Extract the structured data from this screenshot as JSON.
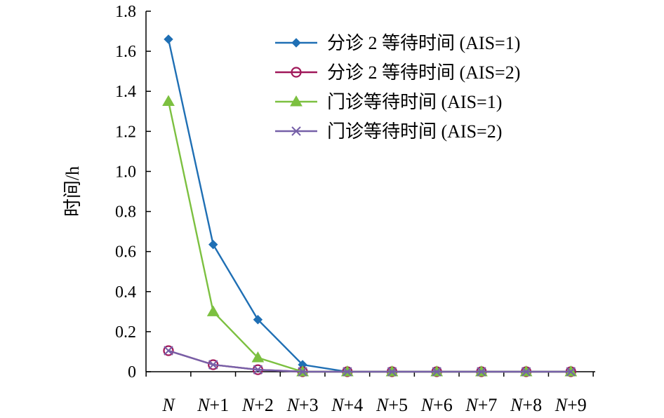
{
  "chart_data": {
    "type": "line",
    "title": "",
    "xlabel": "",
    "ylabel": "时间/h",
    "categories": [
      {
        "italic": "N",
        "rest": ""
      },
      {
        "italic": "N",
        "rest": "+1"
      },
      {
        "italic": "N",
        "rest": "+2"
      },
      {
        "italic": "N",
        "rest": "+3"
      },
      {
        "italic": "N",
        "rest": "+4"
      },
      {
        "italic": "N",
        "rest": "+5"
      },
      {
        "italic": "N",
        "rest": "+6"
      },
      {
        "italic": "N",
        "rest": "+7"
      },
      {
        "italic": "N",
        "rest": "+8"
      },
      {
        "italic": "N",
        "rest": "+9"
      }
    ],
    "ylim": [
      0,
      1.8
    ],
    "yticks": [
      "0",
      "0.2",
      "0.4",
      "0.6",
      "0.8",
      "1.0",
      "1.2",
      "1.4",
      "1.6",
      "1.8"
    ],
    "grid": false,
    "legend_position": "top-right",
    "series": [
      {
        "name": "分诊 2 等待时间 (AIS=1)",
        "color": "#1f6fb4",
        "marker": "diamond",
        "values": [
          1.66,
          0.635,
          0.26,
          0.035,
          0,
          0,
          0,
          0,
          0,
          0
        ]
      },
      {
        "name": "分诊 2 等待时间 (AIS=2)",
        "color": "#a0185a",
        "marker": "circle",
        "values": [
          0.105,
          0.035,
          0.01,
          0,
          0,
          0,
          0,
          0,
          0,
          0
        ]
      },
      {
        "name": "门诊等待时间 (AIS=1)",
        "color": "#7cc040",
        "marker": "triangle",
        "values": [
          1.35,
          0.3,
          0.07,
          0,
          0,
          0,
          0,
          0,
          0,
          0
        ]
      },
      {
        "name": "门诊等待时间 (AIS=2)",
        "color": "#7660a8",
        "marker": "cross",
        "values": [
          0.105,
          0.035,
          0.01,
          0,
          0,
          0,
          0,
          0,
          0,
          0
        ]
      }
    ]
  }
}
